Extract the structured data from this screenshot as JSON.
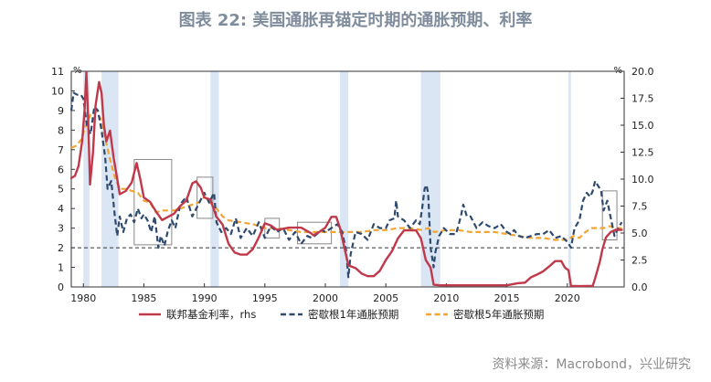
{
  "title": "图表 22: 美国通胀再锚定时期的通胀预期、利率",
  "source": "资料来源：Macrobond，兴业研究",
  "chart_data": {
    "type": "line",
    "left_axis": {
      "unit": "%",
      "range": [
        0,
        11
      ],
      "ticks": [
        0,
        1,
        2,
        3,
        4,
        5,
        6,
        7,
        8,
        9,
        10,
        11
      ]
    },
    "right_axis": {
      "unit": "%",
      "range": [
        0,
        20
      ],
      "ticks": [
        0,
        2.5,
        5,
        7.5,
        10,
        12.5,
        15,
        17.5,
        20
      ],
      "tick_labels": [
        "0.0",
        "2.5",
        "5.0",
        "7.5",
        "10.0",
        "12.5",
        "15.0",
        "17.5",
        "20.0"
      ]
    },
    "x_range": [
      1979,
      2024.7
    ],
    "x_ticks": [
      1980,
      1985,
      1990,
      1995,
      2000,
      2005,
      2010,
      2015,
      2020
    ],
    "reference_line": {
      "axis": "left",
      "value": 2
    },
    "recessions": [
      [
        1980.0,
        1980.5
      ],
      [
        1981.5,
        1982.9
      ],
      [
        1990.5,
        1991.2
      ],
      [
        2001.2,
        2001.9
      ],
      [
        2007.9,
        2009.5
      ],
      [
        2020.1,
        2020.3
      ]
    ],
    "highlight_boxes": [
      {
        "x0": 1984.2,
        "x1": 1987.3,
        "y0": 2.15,
        "y1": 6.5
      },
      {
        "x0": 1989.4,
        "x1": 1990.7,
        "y0": 3.5,
        "y1": 5.6
      },
      {
        "x0": 1995.0,
        "x1": 1996.2,
        "y0": 2.5,
        "y1": 3.5
      },
      {
        "x0": 1997.7,
        "x1": 2000.5,
        "y0": 2.2,
        "y1": 3.3
      },
      {
        "x0": 2022.9,
        "x1": 2024.1,
        "y0": 2.4,
        "y1": 4.9
      }
    ],
    "series": [
      {
        "name": "联邦基金利率，rhs",
        "axis": "right",
        "color": "#c0394b",
        "style": "solid",
        "x": [
          1979.0,
          1979.3,
          1979.6,
          1979.9,
          1980.1,
          1980.25,
          1980.4,
          1980.55,
          1980.8,
          1981.0,
          1981.3,
          1981.5,
          1981.7,
          1981.9,
          1982.2,
          1982.5,
          1982.8,
          1983.0,
          1983.5,
          1984.0,
          1984.4,
          1984.7,
          1985.0,
          1985.5,
          1986.0,
          1986.5,
          1987.0,
          1987.5,
          1988.0,
          1988.5,
          1989.0,
          1989.3,
          1989.7,
          1990.0,
          1990.5,
          1991.0,
          1991.5,
          1992.0,
          1992.5,
          1993.0,
          1993.5,
          1994.0,
          1994.5,
          1995.0,
          1995.5,
          1996.0,
          1997.0,
          1998.0,
          1998.8,
          1999.0,
          1999.5,
          2000.0,
          2000.5,
          2000.9,
          2001.2,
          2001.5,
          2001.9,
          2002.5,
          2003.0,
          2003.5,
          2004.0,
          2004.5,
          2005.0,
          2005.5,
          2006.0,
          2006.5,
          2007.0,
          2007.5,
          2007.9,
          2008.3,
          2008.7,
          2008.95,
          2009.5,
          2012.0,
          2015.0,
          2015.9,
          2016.5,
          2017.0,
          2017.5,
          2018.0,
          2018.5,
          2019.0,
          2019.5,
          2019.8,
          2020.1,
          2020.3,
          2021.0,
          2022.1,
          2022.3,
          2022.5,
          2022.7,
          2022.9,
          2023.2,
          2023.6,
          2024.0,
          2024.5
        ],
        "values": [
          10.1,
          10.3,
          11.2,
          13.5,
          16.5,
          19.9,
          15.5,
          9.5,
          12.5,
          16.8,
          19.0,
          18.0,
          15.0,
          13.5,
          14.5,
          12.0,
          10.0,
          8.6,
          8.9,
          9.7,
          11.5,
          10.0,
          8.3,
          7.9,
          7.0,
          6.2,
          6.5,
          6.8,
          7.5,
          8.0,
          9.6,
          9.8,
          9.2,
          8.3,
          8.1,
          6.5,
          5.8,
          4.0,
          3.2,
          3.0,
          3.0,
          3.5,
          4.6,
          5.9,
          5.7,
          5.3,
          5.5,
          5.5,
          5.0,
          4.8,
          5.1,
          5.5,
          6.5,
          6.5,
          5.5,
          4.0,
          2.0,
          1.75,
          1.25,
          1.0,
          1.0,
          1.5,
          2.5,
          3.3,
          4.5,
          5.25,
          5.25,
          5.25,
          4.5,
          2.5,
          1.8,
          0.2,
          0.15,
          0.15,
          0.15,
          0.35,
          0.4,
          0.9,
          1.15,
          1.45,
          1.9,
          2.4,
          2.4,
          1.8,
          1.55,
          0.1,
          0.08,
          0.1,
          0.8,
          1.6,
          2.4,
          3.5,
          4.6,
          5.1,
          5.3,
          5.3
        ]
      },
      {
        "name": "密歇根1年通胀预期",
        "axis": "left",
        "color": "#2e4a6e",
        "style": "dashed",
        "x": [
          1979.0,
          1979.2,
          1979.5,
          1979.8,
          1980.0,
          1980.3,
          1980.6,
          1980.9,
          1981.2,
          1981.5,
          1981.8,
          1982.0,
          1982.3,
          1982.6,
          1982.8,
          1983.0,
          1983.3,
          1983.6,
          1983.9,
          1984.2,
          1984.5,
          1984.8,
          1985.0,
          1985.3,
          1985.6,
          1985.9,
          1986.2,
          1986.4,
          1986.7,
          1987.0,
          1987.3,
          1987.6,
          1988.0,
          1988.5,
          1989.0,
          1989.5,
          1990.0,
          1990.4,
          1990.8,
          1991.0,
          1991.4,
          1991.8,
          1992.2,
          1992.6,
          1993.0,
          1993.5,
          1994.0,
          1994.5,
          1995.0,
          1995.5,
          1996.0,
          1996.5,
          1997.0,
          1997.5,
          1998.0,
          1998.5,
          1998.9,
          1999.3,
          1999.7,
          2000.0,
          2000.5,
          2001.0,
          2001.4,
          2001.7,
          2001.9,
          2002.1,
          2002.5,
          2003.0,
          2003.5,
          2004.0,
          2004.5,
          2005.0,
          2005.3,
          2005.7,
          2005.85,
          2006.0,
          2006.5,
          2007.0,
          2007.5,
          2007.8,
          2008.0,
          2008.2,
          2008.35,
          2008.5,
          2008.7,
          2008.95,
          2009.1,
          2009.4,
          2009.8,
          2010.3,
          2010.8,
          2011.2,
          2011.4,
          2011.7,
          2012.0,
          2012.5,
          2013.0,
          2013.5,
          2014.0,
          2014.5,
          2015.0,
          2015.3,
          2015.6,
          2016.0,
          2016.5,
          2017.0,
          2017.5,
          2018.0,
          2018.5,
          2019.0,
          2019.5,
          2020.0,
          2020.3,
          2020.6,
          2021.0,
          2021.3,
          2021.6,
          2021.9,
          2022.1,
          2022.3,
          2022.5,
          2022.8,
          2023.0,
          2023.3,
          2023.6,
          2023.9,
          2024.2,
          2024.5
        ],
        "values": [
          9.0,
          9.9,
          9.8,
          9.8,
          9.6,
          8.2,
          7.8,
          9.2,
          9.0,
          8.0,
          6.6,
          5.0,
          5.4,
          3.6,
          2.6,
          3.6,
          2.8,
          3.5,
          3.7,
          3.3,
          4.0,
          3.5,
          3.7,
          3.4,
          2.8,
          3.6,
          2.0,
          2.6,
          2.1,
          2.9,
          3.4,
          3.0,
          4.2,
          4.6,
          3.6,
          4.2,
          4.8,
          4.3,
          4.8,
          3.3,
          2.8,
          3.0,
          2.7,
          3.5,
          2.5,
          3.0,
          2.6,
          3.3,
          2.5,
          3.1,
          2.8,
          3.0,
          2.4,
          2.8,
          2.2,
          2.6,
          2.5,
          2.7,
          2.9,
          2.8,
          3.0,
          3.2,
          2.8,
          1.9,
          0.5,
          1.7,
          2.8,
          2.7,
          2.4,
          3.2,
          3.0,
          3.0,
          3.4,
          3.5,
          4.4,
          3.6,
          3.4,
          3.0,
          3.4,
          3.2,
          4.0,
          5.0,
          5.2,
          4.8,
          2.0,
          1.0,
          1.8,
          2.6,
          3.0,
          2.7,
          2.7,
          3.6,
          4.2,
          3.6,
          3.6,
          3.0,
          3.3,
          3.1,
          3.0,
          3.2,
          2.8,
          2.7,
          2.9,
          2.6,
          2.5,
          2.6,
          2.7,
          2.7,
          2.9,
          2.5,
          2.6,
          2.3,
          2.0,
          3.0,
          3.4,
          4.4,
          4.8,
          4.6,
          4.9,
          5.4,
          5.2,
          4.9,
          3.9,
          4.4,
          3.5,
          2.6,
          3.0,
          3.3
        ]
      },
      {
        "name": "密歇根5年通胀预期",
        "axis": "left",
        "color": "#f0a535",
        "style": "dashed",
        "x": [
          1979.0,
          1979.4,
          1979.8,
          1980.2,
          1980.6,
          1981.0,
          1981.4,
          1981.8,
          1982.2,
          1982.6,
          1983.0,
          1983.5,
          1984.0,
          1984.5,
          1985.0,
          1985.5,
          1986.0,
          1986.5,
          1987.0,
          1987.5,
          1988.0,
          1988.5,
          1989.0,
          1989.5,
          1990.0,
          1990.5,
          1991.0,
          1991.5,
          1992.0,
          1993.0,
          1994.0,
          1995.0,
          1996.0,
          1997.0,
          1998.0,
          1999.0,
          2000.0,
          2001.0,
          2002.0,
          2003.0,
          2004.0,
          2005.0,
          2006.0,
          2007.0,
          2008.0,
          2008.5,
          2009.0,
          2010.0,
          2011.0,
          2012.0,
          2013.0,
          2014.0,
          2015.0,
          2016.0,
          2017.0,
          2018.0,
          2019.0,
          2020.0,
          2020.5,
          2021.0,
          2021.5,
          2022.0,
          2022.5,
          2023.0,
          2023.5,
          2024.0,
          2024.5
        ],
        "values": [
          7.1,
          7.2,
          7.5,
          8.2,
          8.8,
          9.0,
          8.6,
          7.6,
          6.5,
          5.6,
          5.0,
          5.0,
          4.9,
          4.8,
          4.4,
          4.3,
          3.8,
          3.9,
          3.9,
          3.9,
          4.0,
          4.1,
          4.2,
          4.3,
          4.6,
          4.3,
          4.0,
          3.6,
          3.4,
          3.3,
          3.2,
          3.0,
          3.0,
          2.9,
          2.8,
          2.8,
          2.8,
          2.8,
          2.8,
          2.8,
          2.9,
          2.9,
          3.0,
          3.0,
          2.9,
          3.0,
          2.8,
          2.9,
          2.9,
          2.8,
          2.8,
          2.8,
          2.7,
          2.6,
          2.5,
          2.5,
          2.4,
          2.4,
          2.6,
          2.5,
          2.8,
          3.0,
          3.0,
          3.0,
          3.1,
          3.0,
          3.0
        ]
      }
    ],
    "legend": [
      "联邦基金利率，rhs",
      "密歇根1年通胀预期",
      "密歇根5年通胀预期"
    ]
  }
}
